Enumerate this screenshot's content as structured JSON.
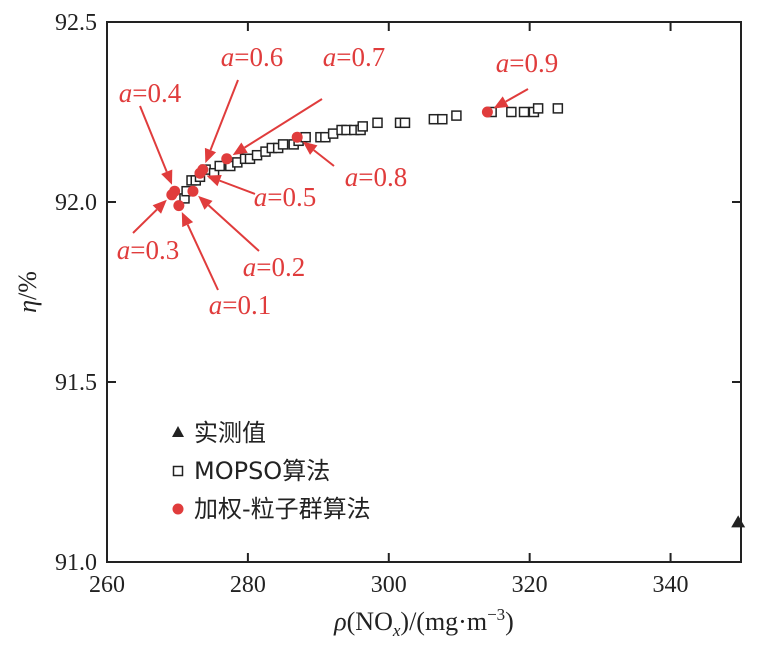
{
  "chart_data": {
    "type": "scatter",
    "xlabel": {
      "rho": "ρ",
      "pre": "(NO",
      "sub": "x",
      "post": ")/(mg·m",
      "sup": "−3",
      "end": ")"
    },
    "ylabel": {
      "eta": "η",
      "unit": "/%"
    },
    "xlim": [
      260,
      350
    ],
    "ylim": [
      91.0,
      92.5
    ],
    "x_ticks": [
      260,
      280,
      300,
      320,
      340
    ],
    "y_ticks": [
      91.0,
      91.5,
      92.0,
      92.5
    ],
    "x_tick_labels": [
      "260",
      "280",
      "300",
      "320",
      "340"
    ],
    "y_tick_labels": [
      "91.0",
      "91.5",
      "92.0",
      "92.5"
    ],
    "grid": false,
    "legend_position": "lower-left",
    "colors": {
      "annotation": "#e03c3c",
      "weighted": "#e03c3c",
      "mopso": "#222222",
      "measured": "#222222",
      "axis": "#222222"
    },
    "series": [
      {
        "name": "实测值",
        "marker": "triangle",
        "points": [
          [
            349.6,
            91.11
          ]
        ]
      },
      {
        "name": "MOPSO算法",
        "marker": "open-square",
        "points": [
          [
            271.0,
            92.01
          ],
          [
            271.3,
            92.03
          ],
          [
            272.0,
            92.06
          ],
          [
            272.6,
            92.06
          ],
          [
            273.2,
            92.07
          ],
          [
            274.0,
            92.09
          ],
          [
            275.2,
            92.08
          ],
          [
            276.0,
            92.1
          ],
          [
            277.5,
            92.1
          ],
          [
            278.5,
            92.11
          ],
          [
            279.6,
            92.12
          ],
          [
            280.3,
            92.12
          ],
          [
            281.3,
            92.13
          ],
          [
            282.5,
            92.14
          ],
          [
            283.4,
            92.15
          ],
          [
            284.3,
            92.15
          ],
          [
            285.0,
            92.16
          ],
          [
            286.5,
            92.16
          ],
          [
            287.2,
            92.17
          ],
          [
            288.2,
            92.18
          ],
          [
            290.3,
            92.18
          ],
          [
            291.0,
            92.18
          ],
          [
            292.1,
            92.19
          ],
          [
            293.3,
            92.2
          ],
          [
            294.0,
            92.2
          ],
          [
            295.1,
            92.2
          ],
          [
            296.0,
            92.2
          ],
          [
            296.3,
            92.21
          ],
          [
            298.4,
            92.22
          ],
          [
            301.6,
            92.22
          ],
          [
            302.3,
            92.22
          ],
          [
            306.4,
            92.23
          ],
          [
            307.6,
            92.23
          ],
          [
            309.6,
            92.24
          ],
          [
            314.6,
            92.25
          ],
          [
            317.4,
            92.25
          ],
          [
            319.2,
            92.25
          ],
          [
            320.6,
            92.25
          ],
          [
            321.2,
            92.26
          ],
          [
            324.0,
            92.26
          ]
        ]
      },
      {
        "name": "加权-粒子群算法",
        "marker": "filled-circle",
        "points": [
          [
            270.2,
            91.99
          ],
          [
            269.2,
            92.02
          ],
          [
            269.6,
            92.03
          ],
          [
            272.2,
            92.03
          ],
          [
            273.2,
            92.08
          ],
          [
            273.6,
            92.09
          ],
          [
            277.0,
            92.12
          ],
          [
            287.0,
            92.18
          ],
          [
            314.0,
            92.25
          ]
        ]
      }
    ],
    "annotations": [
      {
        "prefix": "a",
        "value": "=0.1",
        "point": [
          270.2,
          91.99
        ]
      },
      {
        "prefix": "a",
        "value": "=0.2",
        "point": [
          272.2,
          92.03
        ]
      },
      {
        "prefix": "a",
        "value": "=0.3",
        "point": [
          269.2,
          92.02
        ]
      },
      {
        "prefix": "a",
        "value": "=0.4",
        "point": [
          269.6,
          92.03
        ]
      },
      {
        "prefix": "a",
        "value": "=0.5",
        "point": [
          273.2,
          92.08
        ]
      },
      {
        "prefix": "a",
        "value": "=0.6",
        "point": [
          273.6,
          92.09
        ]
      },
      {
        "prefix": "a",
        "value": "=0.7",
        "point": [
          277.0,
          92.12
        ]
      },
      {
        "prefix": "a",
        "value": "=0.8",
        "point": [
          287.0,
          92.18
        ]
      },
      {
        "prefix": "a",
        "value": "=0.9",
        "point": [
          314.0,
          92.25
        ]
      }
    ],
    "legend": [
      "实测值",
      "MOPSO算法",
      "加权-粒子群算法"
    ]
  }
}
